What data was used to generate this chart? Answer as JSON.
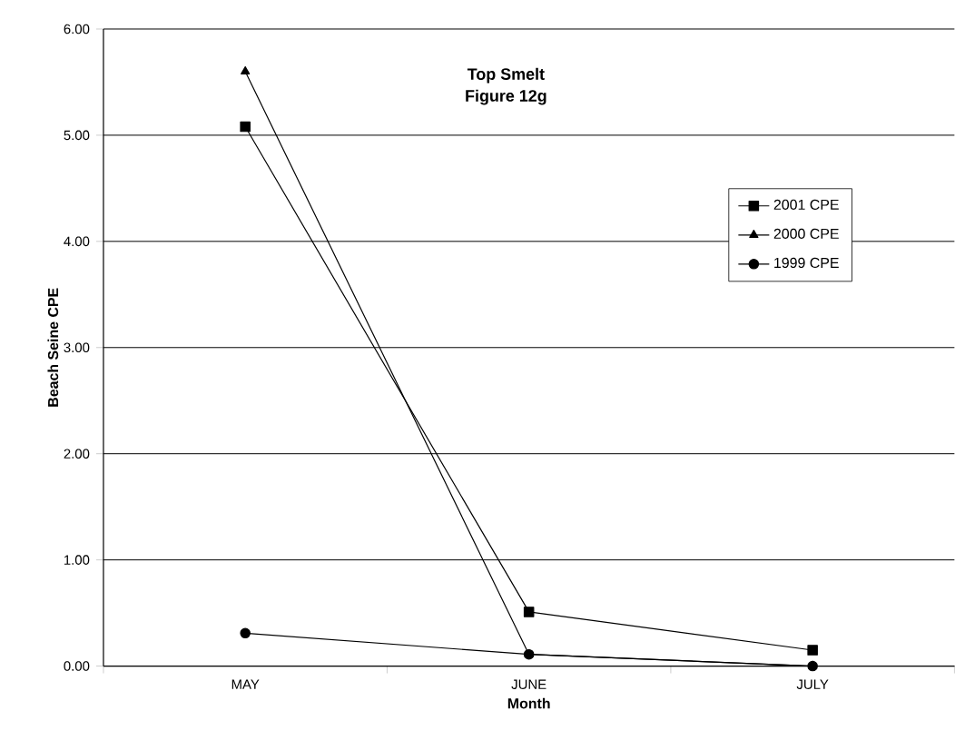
{
  "chart_data": {
    "type": "line",
    "title": "Top Smelt",
    "subtitle": "Figure 12g",
    "xlabel": "Month",
    "ylabel": "Beach Seine CPE",
    "categories": [
      "MAY",
      "JUNE",
      "JULY"
    ],
    "series": [
      {
        "name": "2001 CPE",
        "color": "#000000",
        "marker": "square",
        "values": [
          5.08,
          0.51,
          0.15
        ]
      },
      {
        "name": "2000 CPE",
        "color": "#000000",
        "marker": "triangle",
        "values": [
          5.6,
          0.11,
          0.0
        ]
      },
      {
        "name": "1999 CPE",
        "color": "#000000",
        "marker": "circle",
        "values": [
          0.31,
          0.11,
          0.0
        ]
      }
    ],
    "ylim": [
      0,
      6
    ],
    "yticks": [
      {
        "value": 0,
        "label": "0.00"
      },
      {
        "value": 1,
        "label": "1.00"
      },
      {
        "value": 2,
        "label": "2.00"
      },
      {
        "value": 3,
        "label": "3.00"
      },
      {
        "value": 4,
        "label": "4.00"
      },
      {
        "value": 5,
        "label": "5.00"
      },
      {
        "value": 6,
        "label": "6.00"
      }
    ],
    "grid": "y",
    "legend": "right",
    "line_style": "solid"
  }
}
